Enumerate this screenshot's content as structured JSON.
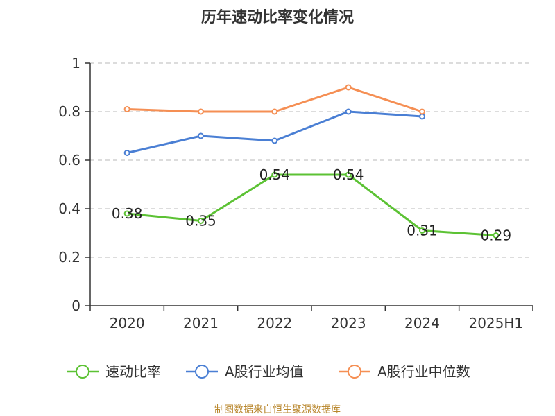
{
  "chart_data": {
    "type": "line",
    "title": "历年速动比率变化情况",
    "categories": [
      "2020",
      "2021",
      "2022",
      "2023",
      "2024",
      "2025H1"
    ],
    "ylim": [
      0,
      1
    ],
    "yticks": [
      "0",
      "0.2",
      "0.4",
      "0.6",
      "0.8",
      "1"
    ],
    "ytick_values": [
      0,
      0.2,
      0.4,
      0.6,
      0.8,
      1
    ],
    "grid": true,
    "legend_position": "bottom",
    "series": [
      {
        "key": "quick",
        "name": "速动比率",
        "color": "#5cc234",
        "values": [
          0.38,
          0.35,
          0.54,
          0.54,
          0.31,
          0.29
        ],
        "labels": [
          "0.38",
          "0.35",
          "0.54",
          "0.54",
          "0.31",
          "0.29"
        ]
      },
      {
        "key": "avg",
        "name": "A股行业均值",
        "color": "#4a7fd4",
        "values": [
          0.63,
          0.7,
          0.68,
          0.8,
          0.78,
          null
        ]
      },
      {
        "key": "median",
        "name": "A股行业中位数",
        "color": "#f58f54",
        "values": [
          0.81,
          0.8,
          0.8,
          0.9,
          0.8,
          null
        ]
      }
    ]
  },
  "source_text": "制图数据来自恒生聚源数据库"
}
